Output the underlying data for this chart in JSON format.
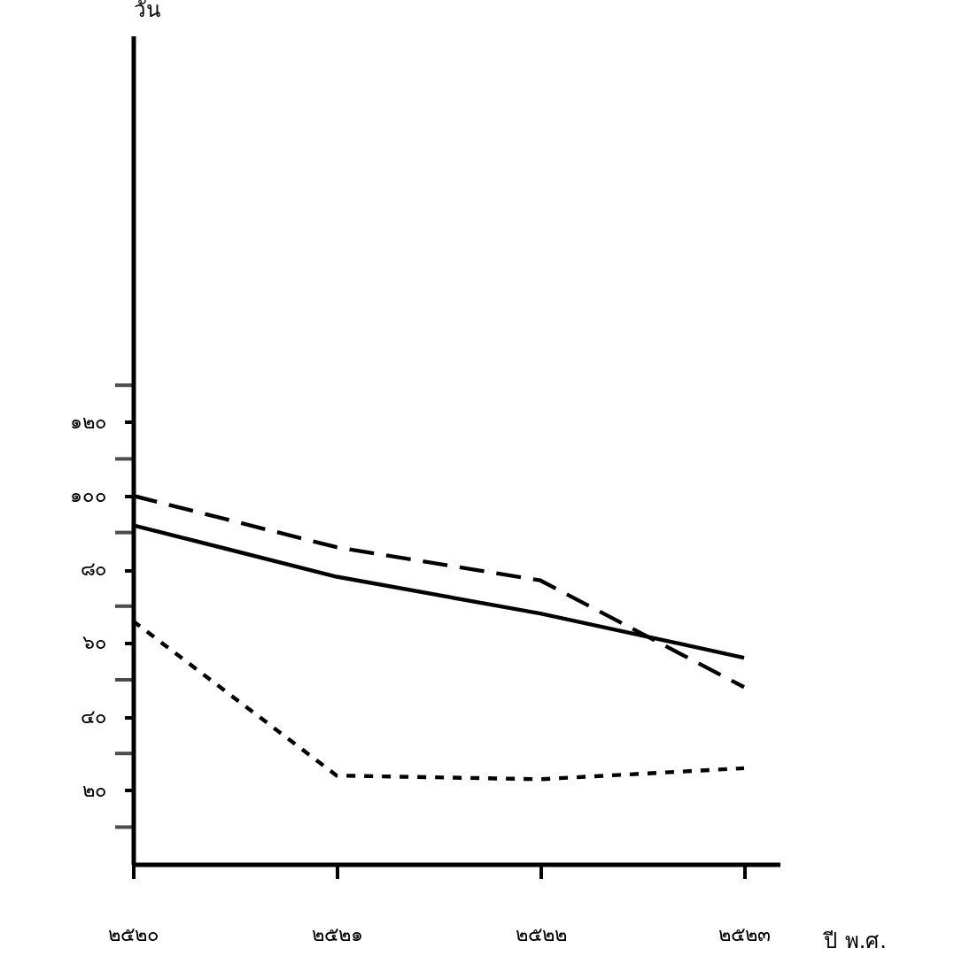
{
  "chart_data": {
    "type": "line",
    "ylabel": "วัน",
    "xlabel": "ปี พ.ศ.",
    "categories": [
      "๒๕๒๐",
      "๒๕๒๑",
      "๒๕๒๒",
      "๒๕๒๓"
    ],
    "series": [
      {
        "color": "#000000",
        "line_style": "solid",
        "values": [
          92,
          78,
          68,
          56
        ]
      },
      {
        "color": "#000000",
        "line_style": "dashed",
        "values": [
          100,
          86,
          77,
          48
        ]
      },
      {
        "color": "#000000",
        "line_style": "dotted",
        "values": [
          66,
          24,
          23,
          26
        ]
      }
    ],
    "ylim": [
      0,
      225
    ],
    "yticks": [
      {
        "value": 10,
        "label": null
      },
      {
        "value": 20,
        "label": "๒๐"
      },
      {
        "value": 30,
        "label": null
      },
      {
        "value": 40,
        "label": "๔๐"
      },
      {
        "value": 50,
        "label": null
      },
      {
        "value": 60,
        "label": "๖๐"
      },
      {
        "value": 70,
        "label": null
      },
      {
        "value": 80,
        "label": "๘๐"
      },
      {
        "value": 90,
        "label": null
      },
      {
        "value": 100,
        "label": "๑๐๐"
      },
      {
        "value": 110,
        "label": null
      },
      {
        "value": 120,
        "label": "๑๒๐"
      },
      {
        "value": 130,
        "label": null
      }
    ],
    "grid": false,
    "marker": "none"
  }
}
